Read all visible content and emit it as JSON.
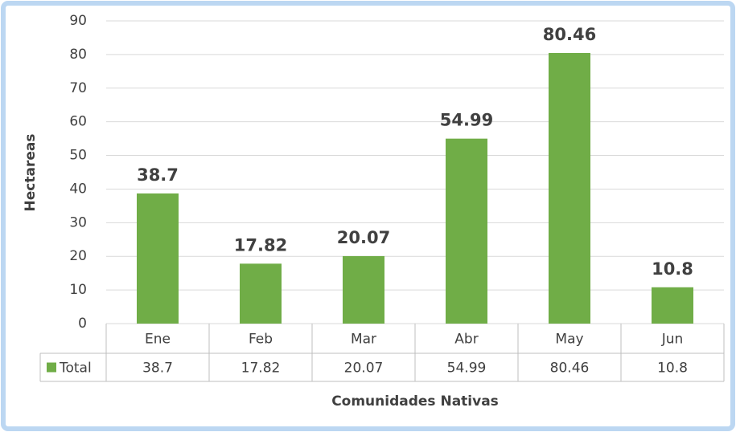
{
  "chart_data": {
    "type": "bar",
    "categories": [
      "Ene",
      "Feb",
      "Mar",
      "Abr",
      "May",
      "Jun"
    ],
    "series": [
      {
        "name": "Total",
        "color": "#70ad47",
        "values": [
          38.7,
          17.82,
          20.07,
          54.99,
          80.46,
          10.8
        ]
      }
    ],
    "ylim": [
      0,
      90
    ],
    "yticks": [
      0,
      10,
      20,
      30,
      40,
      50,
      60,
      70,
      80,
      90
    ],
    "grid": true,
    "y_label": "Hectareas",
    "x_label": "Comunidades Nativas",
    "data_table": true
  }
}
